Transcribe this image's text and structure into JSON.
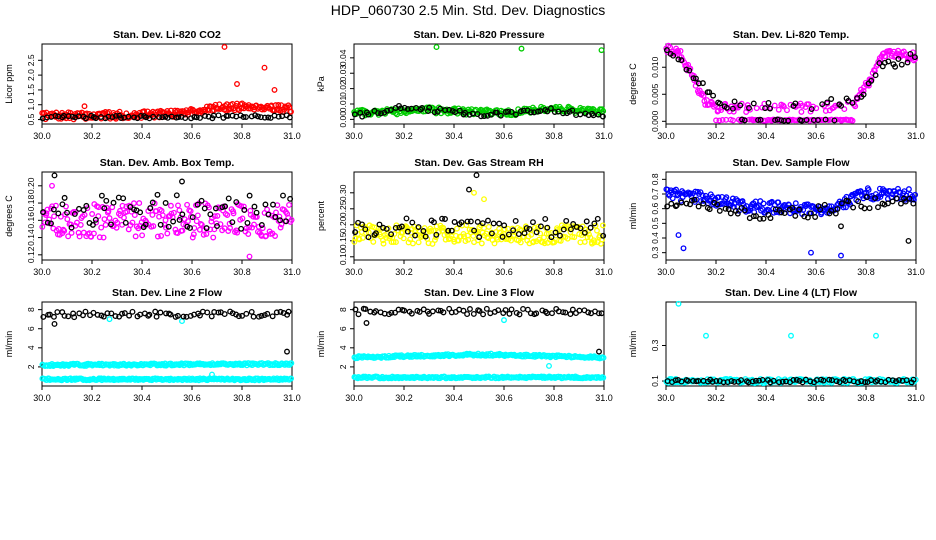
{
  "figure": {
    "title": "HDP_060730  2.5 Min. Std. Dev. Diagnostics"
  },
  "chart_data": [
    {
      "type": "scatter",
      "title": "Stan. Dev. Li-820 CO2",
      "xlabel": "",
      "ylabel": "Licor ppm",
      "xlim": [
        30.0,
        31.0
      ],
      "ylim": [
        0.35,
        3.05
      ],
      "xticks": [
        "30.0",
        "30.2",
        "30.4",
        "30.6",
        "30.8",
        "31.0"
      ],
      "yticks": [
        "0.5",
        "1.0",
        "1.5",
        "2.0",
        "2.5"
      ],
      "series": [
        {
          "name": "primary",
          "color": "#ff0000",
          "shape": "circle",
          "baseline": [
            [
              30.0,
              0.62
            ],
            [
              0.2,
              0.63
            ],
            [
              0.4,
              0.66
            ],
            [
              0.55,
              0.72
            ],
            [
              0.7,
              0.9
            ],
            [
              0.85,
              0.95
            ],
            [
              1.0,
              0.85
            ]
          ],
          "noise": 0.12,
          "spikes": [
            [
              30.73,
              2.95
            ],
            [
              30.89,
              2.25
            ],
            [
              30.17,
              0.95
            ],
            [
              30.78,
              1.7
            ],
            [
              30.93,
              1.5
            ]
          ]
        },
        {
          "name": "secondary",
          "color": "#000000",
          "shape": "circle",
          "baseline": [
            [
              0,
              0.58
            ],
            [
              1,
              0.6
            ]
          ],
          "noise": 0.05,
          "spikes": []
        }
      ]
    },
    {
      "type": "scatter",
      "title": "Stan. Dev. Li-820 Pressure",
      "xlabel": "",
      "ylabel": "kPa",
      "xlim": [
        30.0,
        31.0
      ],
      "ylim": [
        -0.003,
        0.049
      ],
      "xticks": [
        "30.0",
        "30.2",
        "30.4",
        "30.6",
        "30.8",
        "31.0"
      ],
      "yticks": [
        "0.00",
        "0.01",
        "0.02",
        "0.03",
        "0.04"
      ],
      "series": [
        {
          "name": "primary",
          "color": "#00cc00",
          "shape": "circle",
          "baseline": [
            [
              0,
              0.004
            ],
            [
              0.3,
              0.006
            ],
            [
              0.6,
              0.004
            ],
            [
              0.8,
              0.007
            ],
            [
              1,
              0.005
            ]
          ],
          "noise": 0.002,
          "spikes": [
            [
              30.33,
              0.047
            ],
            [
              30.67,
              0.046
            ],
            [
              30.99,
              0.045
            ]
          ]
        },
        {
          "name": "secondary",
          "color": "#000000",
          "shape": "circle",
          "baseline": [
            [
              0,
              0.002
            ],
            [
              0.2,
              0.008
            ],
            [
              0.5,
              0.003
            ],
            [
              0.8,
              0.006
            ],
            [
              1,
              0.002
            ]
          ],
          "noise": 0.0015,
          "spikes": []
        }
      ]
    },
    {
      "type": "scatter",
      "title": "Stan. Dev. Li-820 Temp.",
      "xlabel": "",
      "ylabel": "degrees C",
      "xlim": [
        30.0,
        31.0
      ],
      "ylim": [
        -0.0005,
        0.0143
      ],
      "xticks": [
        "30.0",
        "30.2",
        "30.4",
        "30.6",
        "30.8",
        "31.0"
      ],
      "yticks": [
        "0.000",
        "0.005",
        "0.010"
      ],
      "series": [
        {
          "name": "primary",
          "color": "#ff00ff",
          "shape": "circle",
          "baseline": [
            [
              0,
              0.0135
            ],
            [
              0.06,
              0.0125
            ],
            [
              0.15,
              0.004
            ],
            [
              0.2,
              0.0025
            ],
            [
              0.6,
              0.0025
            ],
            [
              0.75,
              0.003
            ],
            [
              0.82,
              0.008
            ],
            [
              0.87,
              0.0125
            ],
            [
              1,
              0.012
            ]
          ],
          "noise": 0.0008,
          "band": [
            0.2,
            0.75,
            0.0001
          ],
          "spikes": []
        },
        {
          "name": "secondary",
          "color": "#000000",
          "shape": "circle",
          "baseline": [
            [
              0,
              0.013
            ],
            [
              0.08,
              0.01
            ],
            [
              0.18,
              0.0045
            ],
            [
              0.25,
              0.003
            ],
            [
              0.6,
              0.003
            ],
            [
              0.78,
              0.004
            ],
            [
              0.85,
              0.01
            ],
            [
              1,
              0.012
            ]
          ],
          "noise": 0.0008,
          "band": [
            0.3,
            0.7,
            0.0001
          ],
          "spikes": []
        }
      ]
    },
    {
      "type": "scatter",
      "title": "Stan. Dev. Amb. Box Temp.",
      "xlabel": "",
      "ylabel": "degrees C",
      "xlim": [
        30.0,
        31.0
      ],
      "ylim": [
        0.114,
        0.216
      ],
      "xticks": [
        "30.0",
        "30.2",
        "30.4",
        "30.6",
        "30.8",
        "31.0"
      ],
      "yticks": [
        "0.12",
        "0.14",
        "0.16",
        "0.18",
        "0.20"
      ],
      "series": [
        {
          "name": "primary",
          "color": "#ff00ff",
          "shape": "circle",
          "baseline": [
            [
              0,
              0.16
            ],
            [
              1,
              0.16
            ]
          ],
          "noise": 0.02,
          "spikes": [
            [
              30.83,
              0.118
            ],
            [
              30.04,
              0.2
            ]
          ]
        },
        {
          "name": "secondary",
          "color": "#000000",
          "shape": "circle",
          "baseline": [
            [
              0,
              0.17
            ],
            [
              1,
              0.17
            ]
          ],
          "noise": 0.02,
          "spikes": [
            [
              30.05,
              0.212
            ],
            [
              30.56,
              0.205
            ]
          ]
        }
      ]
    },
    {
      "type": "scatter",
      "title": "Stan. Dev. Gas Stream RH",
      "xlabel": "",
      "ylabel": "percent",
      "xlim": [
        30.0,
        31.0
      ],
      "ylim": [
        0.09,
        0.365
      ],
      "xticks": [
        "30.0",
        "30.2",
        "30.4",
        "30.6",
        "30.8",
        "31.0"
      ],
      "yticks": [
        "0.10",
        "0.15",
        "0.20",
        "0.25",
        "0.30"
      ],
      "series": [
        {
          "name": "primary",
          "color": "#ffff00",
          "shape": "circle",
          "baseline": [
            [
              0,
              0.17
            ],
            [
              1,
              0.17
            ]
          ],
          "noise": 0.03,
          "spikes": [
            [
              30.48,
              0.3
            ],
            [
              30.52,
              0.28
            ]
          ]
        },
        {
          "name": "secondary",
          "color": "#000000",
          "shape": "circle",
          "baseline": [
            [
              0,
              0.19
            ],
            [
              1,
              0.19
            ]
          ],
          "noise": 0.03,
          "spikes": [
            [
              30.49,
              0.355
            ],
            [
              30.46,
              0.31
            ]
          ]
        }
      ]
    },
    {
      "type": "scatter",
      "title": "Stan. Dev. Sample Flow",
      "xlabel": "",
      "ylabel": "ml/min",
      "xlim": [
        30.0,
        31.0
      ],
      "ylim": [
        0.25,
        0.85
      ],
      "xticks": [
        "30.0",
        "30.2",
        "30.4",
        "30.6",
        "30.8",
        "31.0"
      ],
      "yticks": [
        "0.3",
        "0.4",
        "0.5",
        "0.6",
        "0.7",
        "0.8"
      ],
      "series": [
        {
          "name": "primary",
          "color": "#0000ff",
          "shape": "circle",
          "baseline": [
            [
              0,
              0.7
            ],
            [
              0.15,
              0.68
            ],
            [
              0.3,
              0.62
            ],
            [
              0.5,
              0.6
            ],
            [
              0.65,
              0.6
            ],
            [
              0.8,
              0.7
            ],
            [
              1,
              0.7
            ]
          ],
          "noise": 0.04,
          "spikes": [
            [
              30.07,
              0.33
            ],
            [
              30.7,
              0.28
            ],
            [
              30.58,
              0.3
            ],
            [
              30.05,
              0.42
            ]
          ]
        },
        {
          "name": "secondary",
          "color": "#000000",
          "shape": "circle",
          "baseline": [
            [
              0,
              0.65
            ],
            [
              0.2,
              0.6
            ],
            [
              0.4,
              0.55
            ],
            [
              0.6,
              0.58
            ],
            [
              0.8,
              0.64
            ],
            [
              1,
              0.65
            ]
          ],
          "noise": 0.04,
          "spikes": [
            [
              30.97,
              0.38
            ],
            [
              30.7,
              0.48
            ]
          ]
        }
      ]
    },
    {
      "type": "scatter",
      "title": "Stan. Dev. Line 2 Flow",
      "xlabel": "",
      "ylabel": "ml/min",
      "xlim": [
        30.0,
        31.0
      ],
      "ylim": [
        0.0,
        8.8
      ],
      "xticks": [
        "30.0",
        "30.2",
        "30.4",
        "30.6",
        "30.8",
        "31.0"
      ],
      "yticks": [
        "2",
        "4",
        "6",
        "8"
      ],
      "series": [
        {
          "name": "band-upper",
          "color": "#00ffff",
          "shape": "circle",
          "baseline": [
            [
              0,
              2.2
            ],
            [
              1,
              2.3
            ]
          ],
          "noise": 0.12,
          "spikes": [
            [
              30.68,
              1.2
            ],
            [
              30.56,
              6.8
            ],
            [
              30.27,
              7.0
            ]
          ]
        },
        {
          "name": "band-lower",
          "color": "#00ffff",
          "shape": "circle",
          "baseline": [
            [
              0,
              0.7
            ],
            [
              1,
              0.7
            ]
          ],
          "noise": 0.1,
          "spikes": []
        },
        {
          "name": "secondary",
          "color": "#000000",
          "shape": "circle",
          "baseline": [
            [
              0,
              7.5
            ],
            [
              1,
              7.5
            ]
          ],
          "noise": 0.3,
          "spikes": [
            [
              30.05,
              6.5
            ],
            [
              30.98,
              3.6
            ]
          ]
        }
      ]
    },
    {
      "type": "scatter",
      "title": "Stan. Dev. Line 3 Flow",
      "xlabel": "",
      "ylabel": "ml/min",
      "xlim": [
        30.0,
        31.0
      ],
      "ylim": [
        0.0,
        8.8
      ],
      "xticks": [
        "30.0",
        "30.2",
        "30.4",
        "30.6",
        "30.8",
        "31.0"
      ],
      "yticks": [
        "2",
        "4",
        "6",
        "8"
      ],
      "series": [
        {
          "name": "band-upper",
          "color": "#00ffff",
          "shape": "circle",
          "baseline": [
            [
              0,
              3.0
            ],
            [
              0.5,
              3.3
            ],
            [
              1,
              3.0
            ]
          ],
          "noise": 0.12,
          "spikes": [
            [
              30.78,
              2.1
            ],
            [
              30.6,
              6.9
            ]
          ]
        },
        {
          "name": "band-lower",
          "color": "#00ffff",
          "shape": "circle",
          "baseline": [
            [
              0,
              0.9
            ],
            [
              1,
              0.9
            ]
          ],
          "noise": 0.1,
          "spikes": []
        },
        {
          "name": "secondary",
          "color": "#000000",
          "shape": "circle",
          "baseline": [
            [
              0,
              7.8
            ],
            [
              1,
              7.8
            ]
          ],
          "noise": 0.3,
          "spikes": [
            [
              30.05,
              6.6
            ],
            [
              30.98,
              3.6
            ]
          ]
        }
      ]
    },
    {
      "type": "scatter",
      "title": "Stan. Dev. Line 4 (LT) Flow",
      "xlabel": "",
      "ylabel": "ml/min",
      "xlim": [
        30.0,
        31.0
      ],
      "ylim": [
        0.072,
        0.545
      ],
      "xticks": [
        "30.0",
        "30.2",
        "30.4",
        "30.6",
        "30.8",
        "31.0"
      ],
      "yticks": [
        "0.1",
        "0.3"
      ],
      "series": [
        {
          "name": "primary",
          "color": "#00ffff",
          "shape": "circle",
          "baseline": [
            [
              0,
              0.1
            ],
            [
              1,
              0.1
            ]
          ],
          "noise": 0.012,
          "spikes": [
            [
              30.05,
              0.535
            ],
            [
              30.16,
              0.355
            ],
            [
              30.5,
              0.355
            ],
            [
              30.84,
              0.355
            ]
          ]
        },
        {
          "name": "secondary",
          "color": "#000000",
          "shape": "circle",
          "baseline": [
            [
              0,
              0.1
            ],
            [
              1,
              0.1
            ]
          ],
          "noise": 0.008,
          "spikes": []
        }
      ]
    }
  ]
}
